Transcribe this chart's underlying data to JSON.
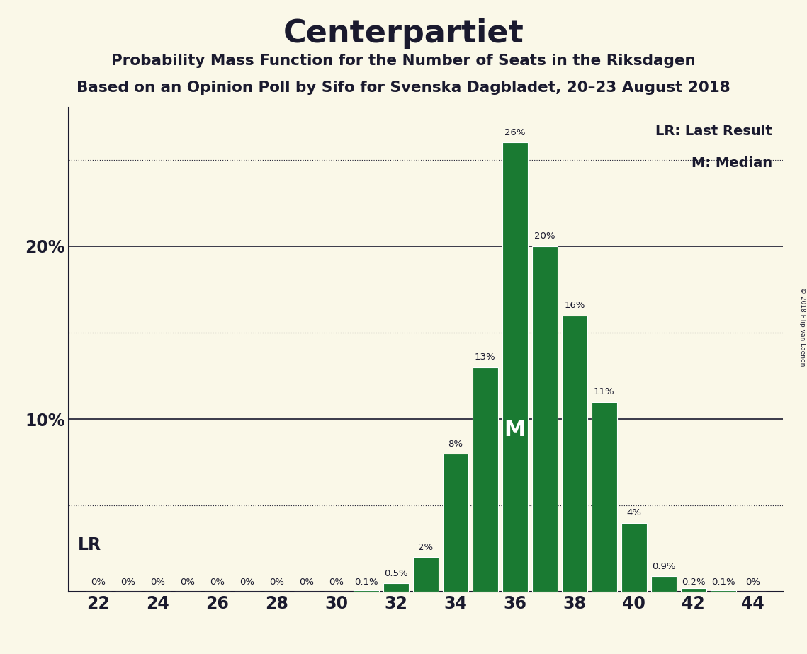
{
  "title": "Centerpartiet",
  "subtitle1": "Probability Mass Function for the Number of Seats in the Riksdagen",
  "subtitle2": "Based on an Opinion Poll by Sifo for Svenska Dagbladet, 20–23 August 2018",
  "copyright": "© 2018 Filip van Laenen",
  "lr_label": "LR: Last Result",
  "m_label": "M: Median",
  "seats": [
    22,
    23,
    24,
    25,
    26,
    27,
    28,
    29,
    30,
    31,
    32,
    33,
    34,
    35,
    36,
    37,
    38,
    39,
    40,
    41,
    42,
    43,
    44
  ],
  "probabilities": [
    0,
    0,
    0,
    0,
    0,
    0,
    0,
    0,
    0,
    0.1,
    0.5,
    2,
    8,
    13,
    26,
    20,
    16,
    11,
    4,
    0.9,
    0.2,
    0.1,
    0
  ],
  "bar_color": "#1a7a32",
  "bg_color": "#faf8e8",
  "text_color": "#1a1a2e",
  "lr_seat": 22,
  "median_seat": 36,
  "ylim_max": 28,
  "xlim": [
    21.0,
    45.0
  ],
  "solid_gridlines": [
    10,
    20
  ],
  "dotted_gridlines": [
    5,
    15,
    25
  ],
  "xticks": [
    22,
    24,
    26,
    28,
    30,
    32,
    34,
    36,
    38,
    40,
    42,
    44
  ],
  "bar_width": 0.85
}
